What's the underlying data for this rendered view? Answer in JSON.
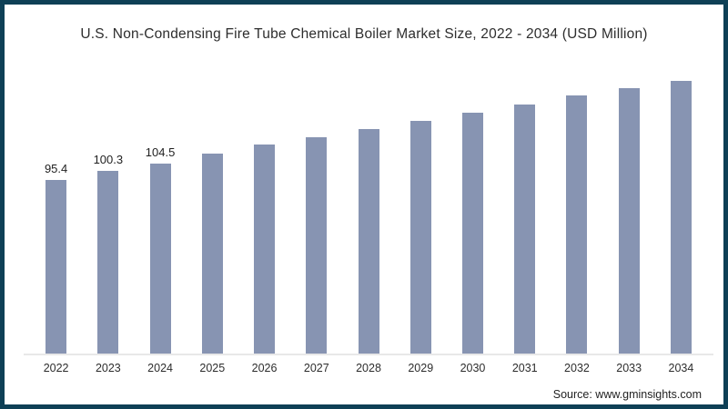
{
  "chart_data": {
    "type": "bar",
    "title": "U.S. Non-Condensing Fire Tube Chemical Boiler Market Size, 2022 - 2034 (USD Million)",
    "categories": [
      "2022",
      "2023",
      "2024",
      "2025",
      "2026",
      "2027",
      "2028",
      "2029",
      "2030",
      "2031",
      "2032",
      "2033",
      "2034"
    ],
    "values": [
      95.4,
      100.3,
      104.5,
      110.1,
      114.8,
      119.2,
      123.7,
      128.0,
      132.6,
      136.9,
      142.0,
      146.0,
      150.2
    ],
    "data_labels": [
      "95.4",
      "100.3",
      "104.5",
      "",
      "",
      "",
      "",
      "",
      "",
      "",
      "",
      "",
      ""
    ],
    "xlabel": "",
    "ylabel": "",
    "ylim": [
      0,
      156
    ],
    "grid": false,
    "legend": false
  },
  "source": {
    "label": "Source: www.gminsights.com"
  },
  "colors": {
    "bar": "#8794b2",
    "frame_border": "#0e4056",
    "axis_line": "#e8e8e8",
    "title_text": "#2d2d2d"
  }
}
